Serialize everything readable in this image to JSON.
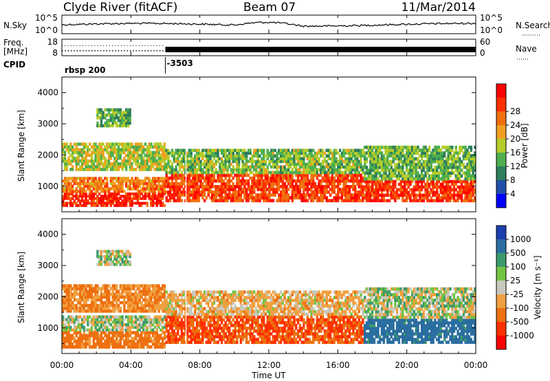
{
  "header": {
    "station": "Clyde River (fitACF)",
    "beam": "Beam 07",
    "date": "11/Mar/2014"
  },
  "noise_panel": {
    "left_label": "N.Sky",
    "right_label": "N.Search",
    "left_ticks": [
      "10^5",
      "10^0"
    ],
    "right_ticks": [
      "10^5",
      "10^0"
    ]
  },
  "freq_panel": {
    "left_label_1": "Freq.",
    "left_label_2": "[MHz]",
    "right_label": "Nave",
    "left_ticks": [
      "18",
      "8"
    ],
    "right_ticks": [
      "60",
      "0"
    ]
  },
  "cpid": {
    "label": "CPID",
    "program": "rbsp 200",
    "change_value": "-3503",
    "change_hour": 6
  },
  "chart_data": [
    {
      "type": "heatmap",
      "panel": "power",
      "ylabel": "Slant Range [km]",
      "ylim": [
        180,
        4500
      ],
      "yticks": [
        "1000",
        "2000",
        "3000",
        "4000"
      ],
      "colorbar_label": "Power [dB]",
      "colorbar_ticks": [
        "4",
        "8",
        "12",
        "16",
        "20",
        "24",
        "28"
      ],
      "colors": [
        "#0000ff",
        "#1f4fa8",
        "#2e7d5b",
        "#4fae4f",
        "#b5cc2a",
        "#f0a020",
        "#f07010",
        "#ff3000",
        "#ff0000"
      ],
      "regions": [
        {
          "t0": 0,
          "t1": 6,
          "r0": 350,
          "r1": 800,
          "level": 28
        },
        {
          "t0": 0,
          "t1": 6,
          "r0": 800,
          "r1": 1300,
          "level": 22
        },
        {
          "t0": 0,
          "t1": 6,
          "r0": 1500,
          "r1": 2400,
          "level": 16
        },
        {
          "t0": 2,
          "t1": 4,
          "r0": 2900,
          "r1": 3500,
          "level": 12
        },
        {
          "t0": 6,
          "t1": 17.5,
          "r0": 500,
          "r1": 1400,
          "level": 26
        },
        {
          "t0": 6,
          "t1": 17.5,
          "r0": 1400,
          "r1": 2200,
          "level": 14
        },
        {
          "t0": 17.5,
          "t1": 24,
          "r0": 500,
          "r1": 1200,
          "level": 27
        },
        {
          "t0": 17.5,
          "t1": 24,
          "r0": 1200,
          "r1": 2300,
          "level": 13
        }
      ]
    },
    {
      "type": "heatmap",
      "panel": "velocity",
      "ylabel": "Slant Range [km]",
      "ylim": [
        180,
        4500
      ],
      "yticks": [
        "1000",
        "2000",
        "3000",
        "4000"
      ],
      "colorbar_label": "Velocity [m s⁻¹]",
      "colorbar_ticks": [
        "1000",
        "500",
        "100",
        "25",
        "-25",
        "-100",
        "-500",
        "-1000"
      ],
      "colors": [
        "#1c3fb0",
        "#2a6ea0",
        "#3c9a6a",
        "#72c443",
        "#c8c8be",
        "#f0a040",
        "#ee7010",
        "#ff3000",
        "#ff0000"
      ],
      "regions": [
        {
          "t0": 0,
          "t1": 6,
          "r0": 350,
          "r1": 900,
          "level": -300
        },
        {
          "t0": 0,
          "t1": 6,
          "r0": 900,
          "r1": 1400,
          "level": 0
        },
        {
          "t0": 0,
          "t1": 6,
          "r0": 1500,
          "r1": 2400,
          "level": -200
        },
        {
          "t0": 2,
          "t1": 4,
          "r0": 3000,
          "r1": 3500,
          "level": 0
        },
        {
          "t0": 6,
          "t1": 17.5,
          "r0": 500,
          "r1": 1400,
          "level": -500
        },
        {
          "t0": 6,
          "t1": 17.5,
          "r0": 1400,
          "r1": 2200,
          "level": -100
        },
        {
          "t0": 17.5,
          "t1": 24,
          "r0": 500,
          "r1": 1300,
          "level": 300
        },
        {
          "t0": 17.5,
          "t1": 24,
          "r0": 1300,
          "r1": 2300,
          "level": 0
        }
      ]
    }
  ],
  "xaxis": {
    "label": "Time UT",
    "ticks": [
      "00:00",
      "04:00",
      "08:00",
      "12:00",
      "16:00",
      "20:00",
      "00:00"
    ],
    "range": [
      0,
      24
    ]
  }
}
